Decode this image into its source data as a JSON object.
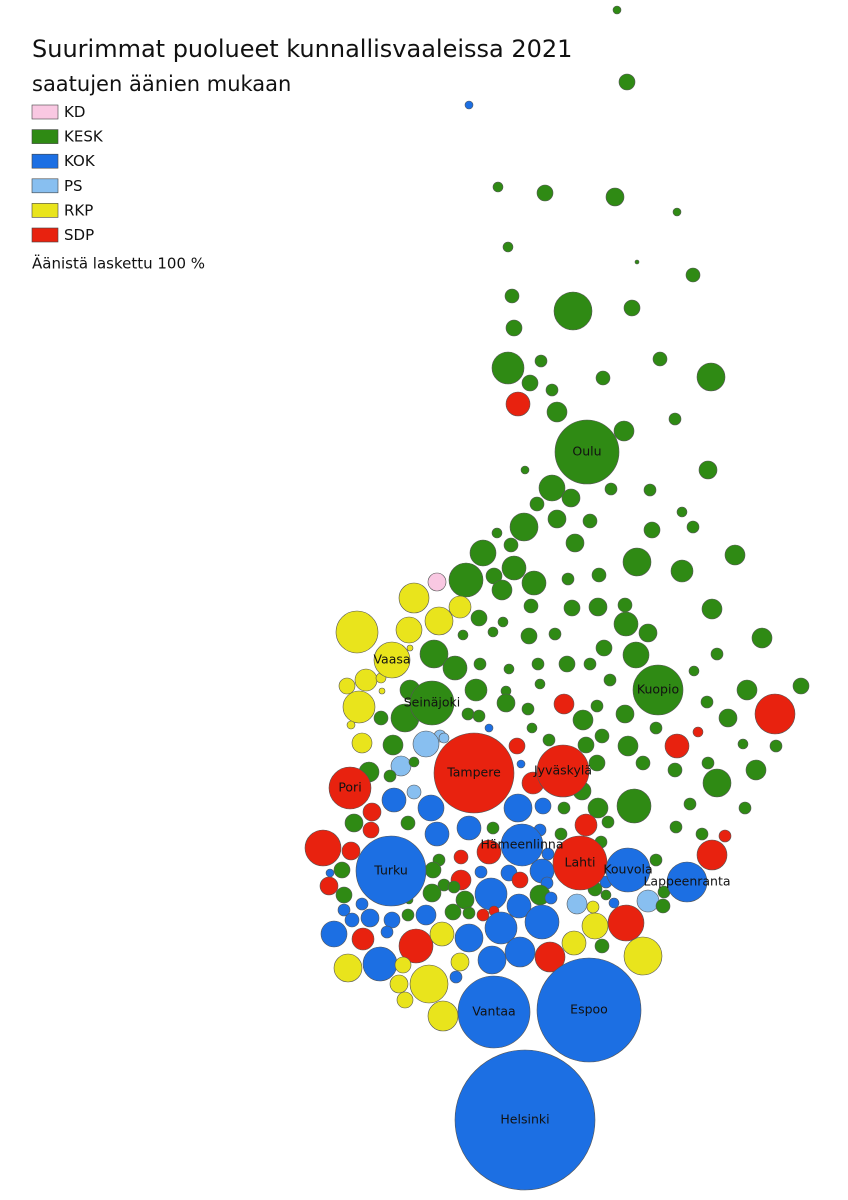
{
  "header": {
    "title": "Suurimmat puolueet kunnallisvaaleissa 2021",
    "subtitle": "saatujen äänien mukaan"
  },
  "legend": {
    "items": [
      {
        "name": "KD",
        "color": "#f9c8e2"
      },
      {
        "name": "KESK",
        "color": "#2f8a14"
      },
      {
        "name": "KOK",
        "color": "#1c6fe3"
      },
      {
        "name": "PS",
        "color": "#88bff0"
      },
      {
        "name": "RKP",
        "color": "#e9e41c"
      },
      {
        "name": "SDP",
        "color": "#e8220f"
      }
    ],
    "note": "Äänistä laskettu 100 %"
  },
  "cities": [
    {
      "name": "Helsinki",
      "party": "KOK"
    },
    {
      "name": "Espoo",
      "party": "KOK"
    },
    {
      "name": "Vantaa",
      "party": "KOK"
    },
    {
      "name": "Turku",
      "party": "KOK"
    },
    {
      "name": "Tampere",
      "party": "SDP"
    },
    {
      "name": "Oulu",
      "party": "KESK"
    },
    {
      "name": "Jyväskylä",
      "party": "SDP"
    },
    {
      "name": "Lahti",
      "party": "SDP"
    },
    {
      "name": "Kuopio",
      "party": "KESK"
    },
    {
      "name": "Pori",
      "party": "SDP"
    },
    {
      "name": "Vaasa",
      "party": "RKP"
    },
    {
      "name": "Seinäjoki",
      "party": "KESK"
    },
    {
      "name": "Hämeenlinna",
      "party": "KOK"
    },
    {
      "name": "Kouvola",
      "party": "KOK"
    },
    {
      "name": "Lappeenranta",
      "party": "KOK"
    }
  ]
}
